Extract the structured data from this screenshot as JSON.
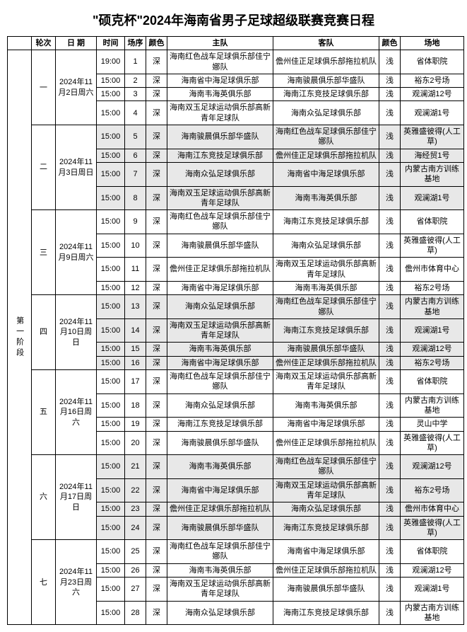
{
  "title": "\"硕克杯\"2024年海南省男子足球超级联赛竞赛日程",
  "headers": {
    "stage": "",
    "round": "轮次",
    "date": "日 期",
    "time": "时间",
    "no": "场序",
    "color1": "颜色",
    "home": "主队",
    "away": "客队",
    "color2": "颜色",
    "venue": "场地"
  },
  "stage_label": "第一阶段",
  "rounds": [
    {
      "round": "一",
      "date": "2024年11月2日周六",
      "shade": false,
      "matches": [
        {
          "time": "19:00",
          "no": "1",
          "c1": "深",
          "home": "海南红色战车足球俱乐部佳宁娜队",
          "away": "儋州佳正足球俱乐部拖拉机队",
          "c2": "浅",
          "venue": "省体职院"
        },
        {
          "time": "15:00",
          "no": "2",
          "c1": "深",
          "home": "海南省中海足球俱乐部",
          "away": "海南骏晨俱乐部华盛队",
          "c2": "浅",
          "venue": "裕东2号场"
        },
        {
          "time": "15:00",
          "no": "3",
          "c1": "深",
          "home": "海南韦海英俱乐部",
          "away": "海南江东竞技足球俱乐部",
          "c2": "浅",
          "venue": "观澜湖12号"
        },
        {
          "time": "15:00",
          "no": "4",
          "c1": "深",
          "home": "海南双玉足球运动俱乐部高新青年足球队",
          "away": "海南众弘足球俱乐部",
          "c2": "浅",
          "venue": "观澜湖1号"
        }
      ]
    },
    {
      "round": "二",
      "date": "2024年11月3日周日",
      "shade": true,
      "matches": [
        {
          "time": "15:00",
          "no": "5",
          "c1": "深",
          "home": "海南骏晨俱乐部华盛队",
          "away": "海南红色战车足球俱乐部佳宁娜队",
          "c2": "浅",
          "venue": "英雅盛彼得(人工草)"
        },
        {
          "time": "15:00",
          "no": "6",
          "c1": "深",
          "home": "海南江东竞技足球俱乐部",
          "away": "儋州佳正足球俱乐部拖拉机队",
          "c2": "浅",
          "venue": "海经贸1号"
        },
        {
          "time": "15:00",
          "no": "7",
          "c1": "深",
          "home": "海南众弘足球俱乐部",
          "away": "海南省中海足球俱乐部",
          "c2": "浅",
          "venue": "内蒙古南方训练基地"
        },
        {
          "time": "15:00",
          "no": "8",
          "c1": "深",
          "home": "海南双玉足球运动俱乐部高新青年足球队",
          "away": "海南韦海英俱乐部",
          "c2": "浅",
          "venue": "观澜湖1号"
        }
      ]
    },
    {
      "round": "三",
      "date": "2024年11月9日周六",
      "shade": false,
      "matches": [
        {
          "time": "15:00",
          "no": "9",
          "c1": "深",
          "home": "海南红色战车足球俱乐部佳宁娜队",
          "away": "海南江东竞技足球俱乐部",
          "c2": "浅",
          "venue": "省体职院"
        },
        {
          "time": "15:00",
          "no": "10",
          "c1": "深",
          "home": "海南骏晨俱乐部华盛队",
          "away": "海南众弘足球俱乐部",
          "c2": "浅",
          "venue": "英雅盛彼得(人工草)"
        },
        {
          "time": "15:00",
          "no": "11",
          "c1": "深",
          "home": "儋州佳正足球俱乐部拖拉机队",
          "away": "海南双玉足球运动俱乐部高新青年足球队",
          "c2": "浅",
          "venue": "儋州市体育中心"
        },
        {
          "time": "15:00",
          "no": "12",
          "c1": "深",
          "home": "海南省中海足球俱乐部",
          "away": "海南韦海英俱乐部",
          "c2": "浅",
          "venue": "裕东2号场"
        }
      ]
    },
    {
      "round": "四",
      "date": "2024年11月10日周日",
      "shade": true,
      "matches": [
        {
          "time": "15:00",
          "no": "13",
          "c1": "深",
          "home": "海南众弘足球俱乐部",
          "away": "海南红色战车足球俱乐部佳宁娜队",
          "c2": "浅",
          "venue": "内蒙古南方训练基地"
        },
        {
          "time": "15:00",
          "no": "14",
          "c1": "深",
          "home": "海南双玉足球运动俱乐部高新青年足球队",
          "away": "海南江东竞技足球俱乐部",
          "c2": "浅",
          "venue": "观澜湖1号"
        },
        {
          "time": "15:00",
          "no": "15",
          "c1": "深",
          "home": "海南韦海英俱乐部",
          "away": "海南骏晨俱乐部华盛队",
          "c2": "浅",
          "venue": "观澜湖12号"
        },
        {
          "time": "15:00",
          "no": "16",
          "c1": "深",
          "home": "海南省中海足球俱乐部",
          "away": "儋州佳正足球俱乐部拖拉机队",
          "c2": "浅",
          "venue": "裕东2号场"
        }
      ]
    },
    {
      "round": "五",
      "date": "2024年11月16日周六",
      "shade": false,
      "matches": [
        {
          "time": "15:00",
          "no": "17",
          "c1": "深",
          "home": "海南红色战车足球俱乐部佳宁娜队",
          "away": "海南双玉足球运动俱乐部高新青年足球队",
          "c2": "浅",
          "venue": "省体职院"
        },
        {
          "time": "15:00",
          "no": "18",
          "c1": "深",
          "home": "海南众弘足球俱乐部",
          "away": "海南韦海英俱乐部",
          "c2": "浅",
          "venue": "内蒙古南方训练基地"
        },
        {
          "time": "15:00",
          "no": "19",
          "c1": "深",
          "home": "海南江东竞技足球俱乐部",
          "away": "海南省中海足球俱乐部",
          "c2": "浅",
          "venue": "灵山中学"
        },
        {
          "time": "15:00",
          "no": "20",
          "c1": "深",
          "home": "海南骏晨俱乐部华盛队",
          "away": "儋州佳正足球俱乐部拖拉机队",
          "c2": "浅",
          "venue": "英雅盛彼得(人工草)"
        }
      ]
    },
    {
      "round": "六",
      "date": "2024年11月17日周日",
      "shade": true,
      "matches": [
        {
          "time": "15:00",
          "no": "21",
          "c1": "深",
          "home": "海南韦海英俱乐部",
          "away": "海南红色战车足球俱乐部佳宁娜队",
          "c2": "浅",
          "venue": "观澜湖12号"
        },
        {
          "time": "15:00",
          "no": "22",
          "c1": "深",
          "home": "海南省中海足球俱乐部",
          "away": "海南双玉足球运动俱乐部高新青年足球队",
          "c2": "浅",
          "venue": "裕东2号场"
        },
        {
          "time": "15:00",
          "no": "23",
          "c1": "深",
          "home": "儋州佳正足球俱乐部拖拉机队",
          "away": "海南众弘足球俱乐部",
          "c2": "浅",
          "venue": "儋州市体育中心"
        },
        {
          "time": "15:00",
          "no": "24",
          "c1": "深",
          "home": "海南骏晨俱乐部华盛队",
          "away": "海南江东竞技足球俱乐部",
          "c2": "浅",
          "venue": "英雅盛彼得(人工草)"
        }
      ]
    },
    {
      "round": "七",
      "date": "2024年11月23日周六",
      "shade": false,
      "matches": [
        {
          "time": "15:00",
          "no": "25",
          "c1": "深",
          "home": "海南红色战车足球俱乐部佳宁娜队",
          "away": "海南省中海足球俱乐部",
          "c2": "浅",
          "venue": "省体职院"
        },
        {
          "time": "15:00",
          "no": "26",
          "c1": "深",
          "home": "海南韦海英俱乐部",
          "away": "儋州佳正足球俱乐部拖拉机队",
          "c2": "浅",
          "venue": "观澜湖12号"
        },
        {
          "time": "15:00",
          "no": "27",
          "c1": "深",
          "home": "海南双玉足球运动俱乐部高新青年足球队",
          "away": "海南骏晨俱乐部华盛队",
          "c2": "浅",
          "venue": "观澜湖1号"
        },
        {
          "time": "15:00",
          "no": "28",
          "c1": "深",
          "home": "海南众弘足球俱乐部",
          "away": "海南江东竞技足球俱乐部",
          "c2": "浅",
          "venue": "内蒙古南方训练基地"
        }
      ]
    }
  ]
}
